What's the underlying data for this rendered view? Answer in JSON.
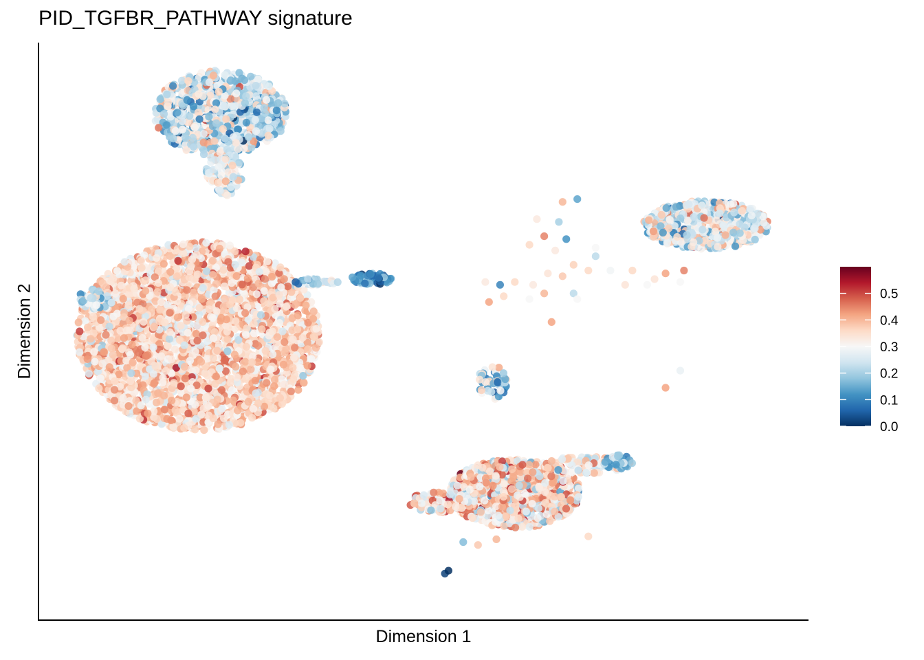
{
  "chart_data": {
    "type": "scatter",
    "title": "PID_TGFBR_PATHWAY signature",
    "xlabel": "Dimension 1",
    "ylabel": "Dimension 2",
    "x_ticks": [],
    "y_ticks": [],
    "grid": false,
    "legend": {
      "type": "colorbar",
      "placement": "right",
      "range": [
        0.0,
        0.6
      ],
      "ticks": [
        "0.0",
        "0.1",
        "0.2",
        "0.3",
        "0.4",
        "0.5"
      ],
      "tick_values": [
        0.0,
        0.1,
        0.2,
        0.3,
        0.4,
        0.5
      ],
      "palette": [
        "#053061",
        "#2166ac",
        "#4393c3",
        "#92c5de",
        "#d1e5f0",
        "#f7f7f7",
        "#fddbc7",
        "#f4a582",
        "#d6604d",
        "#b2182b",
        "#67001f"
      ]
    },
    "clusters": [
      {
        "cx": 4.5,
        "cy": 11.2,
        "rx": 1.8,
        "ry": 1.5,
        "mean": 0.24,
        "sd": 0.09,
        "n": 900
      },
      {
        "cx": 4.6,
        "cy": 9.1,
        "rx": 0.5,
        "ry": 0.8,
        "mean": 0.28,
        "sd": 0.07,
        "n": 90
      },
      {
        "cx": 3.9,
        "cy": 3.4,
        "rx": 3.3,
        "ry": 3.3,
        "mean": 0.36,
        "sd": 0.06,
        "n": 3200
      },
      {
        "cx": 1.1,
        "cy": 4.7,
        "rx": 0.5,
        "ry": 0.35,
        "mean": 0.23,
        "sd": 0.07,
        "n": 45
      },
      {
        "cx": 7.1,
        "cy": 5.3,
        "rx": 0.6,
        "ry": 0.12,
        "mean": 0.22,
        "sd": 0.07,
        "n": 40
      },
      {
        "cx": 8.6,
        "cy": 5.4,
        "rx": 0.55,
        "ry": 0.2,
        "mean": 0.13,
        "sd": 0.06,
        "n": 55
      },
      {
        "cx": 17.7,
        "cy": 7.3,
        "rx": 1.7,
        "ry": 0.85,
        "mean": 0.27,
        "sd": 0.09,
        "n": 650
      },
      {
        "cx": 11.9,
        "cy": 1.8,
        "rx": 0.4,
        "ry": 0.6,
        "mean": 0.2,
        "sd": 0.1,
        "n": 55
      },
      {
        "cx": 12.5,
        "cy": -2.1,
        "rx": 1.8,
        "ry": 1.2,
        "mean": 0.35,
        "sd": 0.09,
        "n": 1000
      },
      {
        "cx": 10.5,
        "cy": -2.4,
        "rx": 0.9,
        "ry": 0.35,
        "mean": 0.36,
        "sd": 0.08,
        "n": 130
      },
      {
        "cx": 14.5,
        "cy": -1.1,
        "rx": 1.2,
        "ry": 0.3,
        "mean": 0.33,
        "sd": 0.08,
        "n": 120
      },
      {
        "cx": 15.3,
        "cy": -1.0,
        "rx": 0.4,
        "ry": 0.25,
        "mean": 0.17,
        "sd": 0.06,
        "n": 35
      }
    ],
    "points": [
      {
        "x": 13.8,
        "y": 8.1,
        "v": 0.4
      },
      {
        "x": 14.2,
        "y": 8.2,
        "v": 0.14
      },
      {
        "x": 13.1,
        "y": 7.5,
        "v": 0.33
      },
      {
        "x": 13.7,
        "y": 7.4,
        "v": 0.2
      },
      {
        "x": 13.3,
        "y": 6.9,
        "v": 0.45
      },
      {
        "x": 13.9,
        "y": 6.8,
        "v": 0.12
      },
      {
        "x": 12.9,
        "y": 6.6,
        "v": 0.36
      },
      {
        "x": 13.6,
        "y": 6.4,
        "v": 0.33
      },
      {
        "x": 14.7,
        "y": 6.5,
        "v": 0.3
      },
      {
        "x": 14.7,
        "y": 6.2,
        "v": 0.22
      },
      {
        "x": 14.1,
        "y": 5.9,
        "v": 0.37
      },
      {
        "x": 13.4,
        "y": 5.6,
        "v": 0.34
      },
      {
        "x": 13.8,
        "y": 5.5,
        "v": 0.38
      },
      {
        "x": 14.5,
        "y": 5.7,
        "v": 0.36
      },
      {
        "x": 15.1,
        "y": 5.7,
        "v": 0.29
      },
      {
        "x": 15.7,
        "y": 5.7,
        "v": 0.36
      },
      {
        "x": 16.3,
        "y": 5.4,
        "v": 0.34
      },
      {
        "x": 16.6,
        "y": 5.6,
        "v": 0.42
      },
      {
        "x": 17.1,
        "y": 5.7,
        "v": 0.45
      },
      {
        "x": 15.5,
        "y": 5.2,
        "v": 0.34
      },
      {
        "x": 16.1,
        "y": 5.2,
        "v": 0.3
      },
      {
        "x": 17.0,
        "y": 5.3,
        "v": 0.3
      },
      {
        "x": 11.7,
        "y": 5.3,
        "v": 0.33
      },
      {
        "x": 12.1,
        "y": 5.2,
        "v": 0.1
      },
      {
        "x": 12.5,
        "y": 5.3,
        "v": 0.36
      },
      {
        "x": 13.0,
        "y": 5.2,
        "v": 0.33
      },
      {
        "x": 12.2,
        "y": 4.8,
        "v": 0.36
      },
      {
        "x": 12.9,
        "y": 4.7,
        "v": 0.3
      },
      {
        "x": 13.3,
        "y": 4.9,
        "v": 0.4
      },
      {
        "x": 11.8,
        "y": 4.6,
        "v": 0.42
      },
      {
        "x": 14.1,
        "y": 4.9,
        "v": 0.22
      },
      {
        "x": 14.2,
        "y": 4.7,
        "v": 0.3
      },
      {
        "x": 13.5,
        "y": 3.9,
        "v": 0.42
      },
      {
        "x": 17.0,
        "y": 2.2,
        "v": 0.28
      },
      {
        "x": 16.6,
        "y": 1.6,
        "v": 0.42
      },
      {
        "x": 14.5,
        "y": -3.6,
        "v": 0.36
      },
      {
        "x": 11.1,
        "y": -3.8,
        "v": 0.17
      },
      {
        "x": 11.5,
        "y": -3.9,
        "v": 0.38
      },
      {
        "x": 10.6,
        "y": -4.9,
        "v": 0.02
      },
      {
        "x": 10.7,
        "y": -4.8,
        "v": 0.0
      },
      {
        "x": 12.0,
        "y": -3.7,
        "v": 0.4
      }
    ]
  }
}
